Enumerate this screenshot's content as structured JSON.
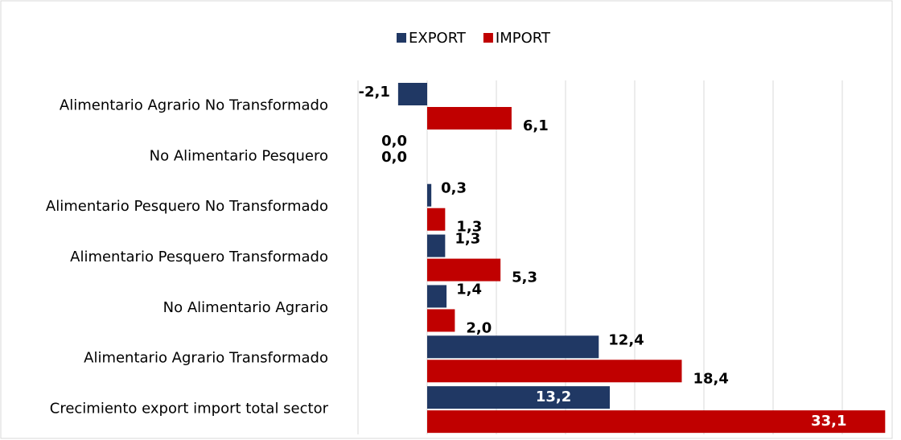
{
  "chart_data": {
    "type": "hbar",
    "categories": [
      "Alimentario Agrario No Transformado",
      "No Alimentario Pesquero",
      "Alimentario Pesquero No Transformado",
      "Alimentario Pesquero Transformado",
      "No Alimentario Agrario",
      "Alimentario Agrario Transformado",
      "Crecimiento export import total sector"
    ],
    "series": [
      {
        "name": "EXPORT",
        "color": "#203864",
        "values": [
          -2.1,
          0.0,
          0.3,
          1.3,
          1.4,
          12.4,
          13.2
        ],
        "value_labels": [
          "-2,1",
          "0,0",
          "0,3",
          "1,3",
          "1,4",
          "12,4",
          "13,2"
        ]
      },
      {
        "name": "IMPORT",
        "color": "#c00000",
        "values": [
          6.1,
          0.0,
          1.3,
          5.3,
          2.0,
          18.4,
          33.1
        ],
        "value_labels": [
          "6,1",
          "0,0",
          "1,3",
          "5,3",
          "2,0",
          "18,4",
          "33,1"
        ]
      }
    ],
    "xlim": [
      -5,
      35
    ],
    "xticks": [
      -5,
      0,
      5,
      10,
      15,
      20,
      25,
      30
    ],
    "grid": true,
    "legend": "top"
  }
}
